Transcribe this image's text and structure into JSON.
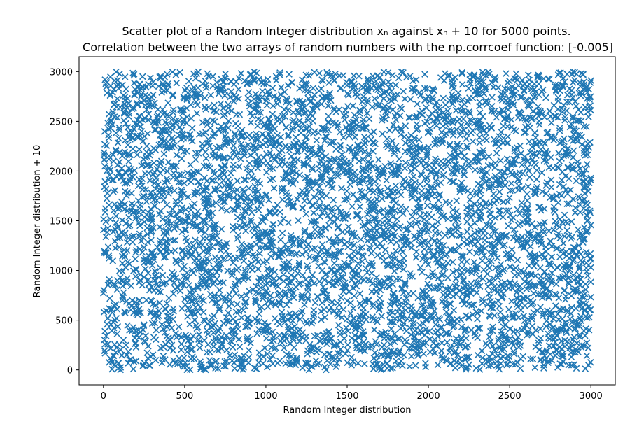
{
  "chart_data": {
    "type": "scatter",
    "title_lines": [
      "Scatter plot of a Random Integer distribution xₙ against xₙ + 10 for 5000 points.",
      "Correlation between the two arrays of random numbers with the np.corrcoef function: [-0.005]"
    ],
    "xlabel": "Random Integer distribution",
    "ylabel": "Random Integer distribution + 10",
    "xlim": [
      -150,
      3150
    ],
    "ylim": [
      -150,
      3150
    ],
    "xticks": [
      0,
      500,
      1000,
      1500,
      2000,
      2500,
      3000
    ],
    "yticks": [
      0,
      500,
      1000,
      1500,
      2000,
      2500,
      3000
    ],
    "marker": "x",
    "color": "#1f77b4",
    "n_points": 5000,
    "x_range": [
      0,
      3000
    ],
    "y_range": [
      0,
      3000
    ],
    "grid": false,
    "legend": "none"
  }
}
